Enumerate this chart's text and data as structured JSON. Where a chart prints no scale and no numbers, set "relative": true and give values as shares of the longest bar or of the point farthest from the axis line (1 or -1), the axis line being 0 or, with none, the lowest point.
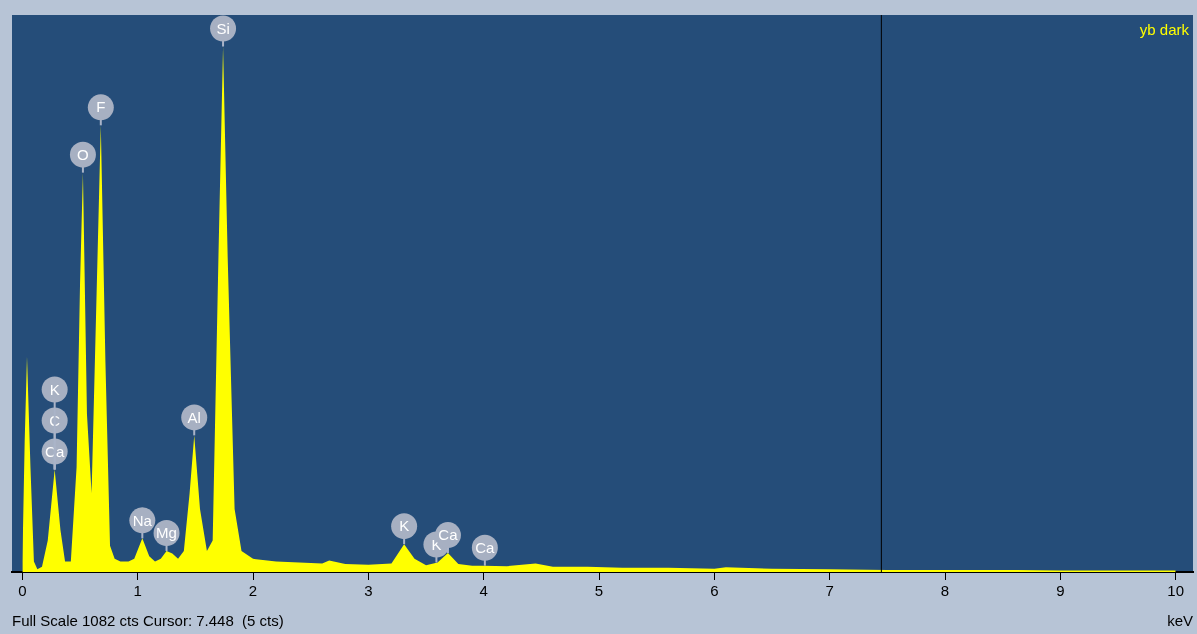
{
  "chart_data": {
    "type": "area",
    "relative": true,
    "xlabel": "keV",
    "xlim": [
      -0.09,
      10.15
    ],
    "xticks": [
      0,
      1,
      2,
      3,
      4,
      5,
      6,
      7,
      8,
      9,
      10
    ],
    "grid": false,
    "legend": false,
    "marker": "none",
    "series": [
      {
        "color": "#ffff00",
        "x": [
          0,
          0.02,
          0.04,
          0.07,
          0.1,
          0.13,
          0.17,
          0.22,
          0.28,
          0.33,
          0.37,
          0.42,
          0.47,
          0.5,
          0.525,
          0.56,
          0.6,
          0.64,
          0.68,
          0.72,
          0.76,
          0.8,
          0.85,
          0.92,
          0.97,
          1.04,
          1.1,
          1.15,
          1.2,
          1.25,
          1.3,
          1.35,
          1.4,
          1.45,
          1.49,
          1.54,
          1.6,
          1.65,
          1.7,
          1.74,
          1.78,
          1.84,
          1.9,
          2.0,
          2.2,
          2.4,
          2.6,
          2.66,
          2.8,
          3.0,
          3.2,
          3.31,
          3.4,
          3.5,
          3.6,
          3.69,
          3.78,
          3.9,
          4.0,
          4.2,
          4.45,
          4.6,
          4.9,
          5.2,
          5.6,
          6.0,
          6.1,
          6.5,
          7.0,
          7.5,
          8.0,
          8.5,
          9.0,
          9.5,
          10
        ],
        "values": [
          0.02,
          0.25,
          0.41,
          0.2,
          0.02,
          0.005,
          0.01,
          0.06,
          0.195,
          0.08,
          0.02,
          0.02,
          0.2,
          0.55,
          0.76,
          0.3,
          0.15,
          0.5,
          0.85,
          0.4,
          0.05,
          0.025,
          0.02,
          0.02,
          0.025,
          0.064,
          0.03,
          0.02,
          0.025,
          0.04,
          0.035,
          0.025,
          0.04,
          0.15,
          0.26,
          0.12,
          0.04,
          0.06,
          0.6,
          1.0,
          0.6,
          0.12,
          0.04,
          0.025,
          0.02,
          0.018,
          0.016,
          0.022,
          0.015,
          0.014,
          0.016,
          0.053,
          0.025,
          0.013,
          0.018,
          0.036,
          0.015,
          0.012,
          0.012,
          0.011,
          0.016,
          0.01,
          0.01,
          0.008,
          0.008,
          0.006,
          0.009,
          0.006,
          0.005,
          0.004,
          0.004,
          0.004,
          0.003,
          0.003,
          0.003
        ]
      }
    ],
    "ref_lines": [
      {
        "axis": "x",
        "value": 7.448,
        "color": "#000000"
      }
    ],
    "annotations": [
      "yb dark",
      "Full Scale 1082 cts Cursor: 7.448  (5 cts)",
      {
        "text": "Ca",
        "x": 0.28,
        "y": 0.195
      },
      {
        "text": "C",
        "x": 0.28,
        "y": 0.195
      },
      {
        "text": "K",
        "x": 0.28,
        "y": 0.195
      },
      {
        "text": "O",
        "x": 0.525,
        "y": 0.76
      },
      {
        "text": "F",
        "x": 0.68,
        "y": 0.85
      },
      {
        "text": "Na",
        "x": 1.04,
        "y": 0.064
      },
      {
        "text": "Mg",
        "x": 1.25,
        "y": 0.04
      },
      {
        "text": "Al",
        "x": 1.49,
        "y": 0.26
      },
      {
        "text": "Si",
        "x": 1.74,
        "y": 1.0
      },
      {
        "text": "K",
        "x": 3.31,
        "y": 0.053
      },
      {
        "text": "K",
        "x": 3.59,
        "y": 0.018
      },
      {
        "text": "Ca",
        "x": 3.69,
        "y": 0.036
      },
      {
        "text": "Ca",
        "x": 4.01,
        "y": 0.012
      }
    ]
  }
}
